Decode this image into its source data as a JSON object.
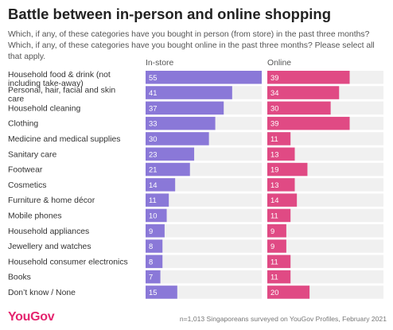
{
  "title": "Battle between in-person and online shopping",
  "subtitle": "Which, if any, of these categories have you bought in person (from store) in the past three months? Which, if any, of these categories have you bought online in the past three months? Please select all that apply.",
  "footer": {
    "brand": "YouGov",
    "note": "n=1,013 Singaporeans surveyed on YouGov Profiles, February 2021"
  },
  "colors": {
    "instore": "#8a78d8",
    "online": "#e04a84",
    "track": "#f0f0f0",
    "brand": "#e4256f"
  },
  "chart_data": {
    "type": "bar",
    "orientation": "horizontal",
    "categories": [
      "Household food & drink (not including take-away)",
      "Personal, hair, facial and skin care",
      "Household cleaning",
      "Clothing",
      "Medicine and medical supplies",
      "Sanitary care",
      "Footwear",
      "Cosmetics",
      "Furniture & home décor",
      "Mobile phones",
      "Household appliances",
      "Jewellery and watches",
      "Household consumer electronics",
      "Books",
      "Don’t know / None"
    ],
    "series": [
      {
        "name": "In-store",
        "values": [
          55,
          41,
          37,
          33,
          30,
          23,
          21,
          14,
          11,
          10,
          9,
          8,
          8,
          7,
          15
        ]
      },
      {
        "name": "Online",
        "values": [
          39,
          34,
          30,
          39,
          11,
          13,
          19,
          13,
          14,
          11,
          9,
          9,
          11,
          11,
          20
        ]
      }
    ],
    "xlim": [
      0,
      55
    ],
    "grid": false,
    "legend": "column headers above panels"
  }
}
